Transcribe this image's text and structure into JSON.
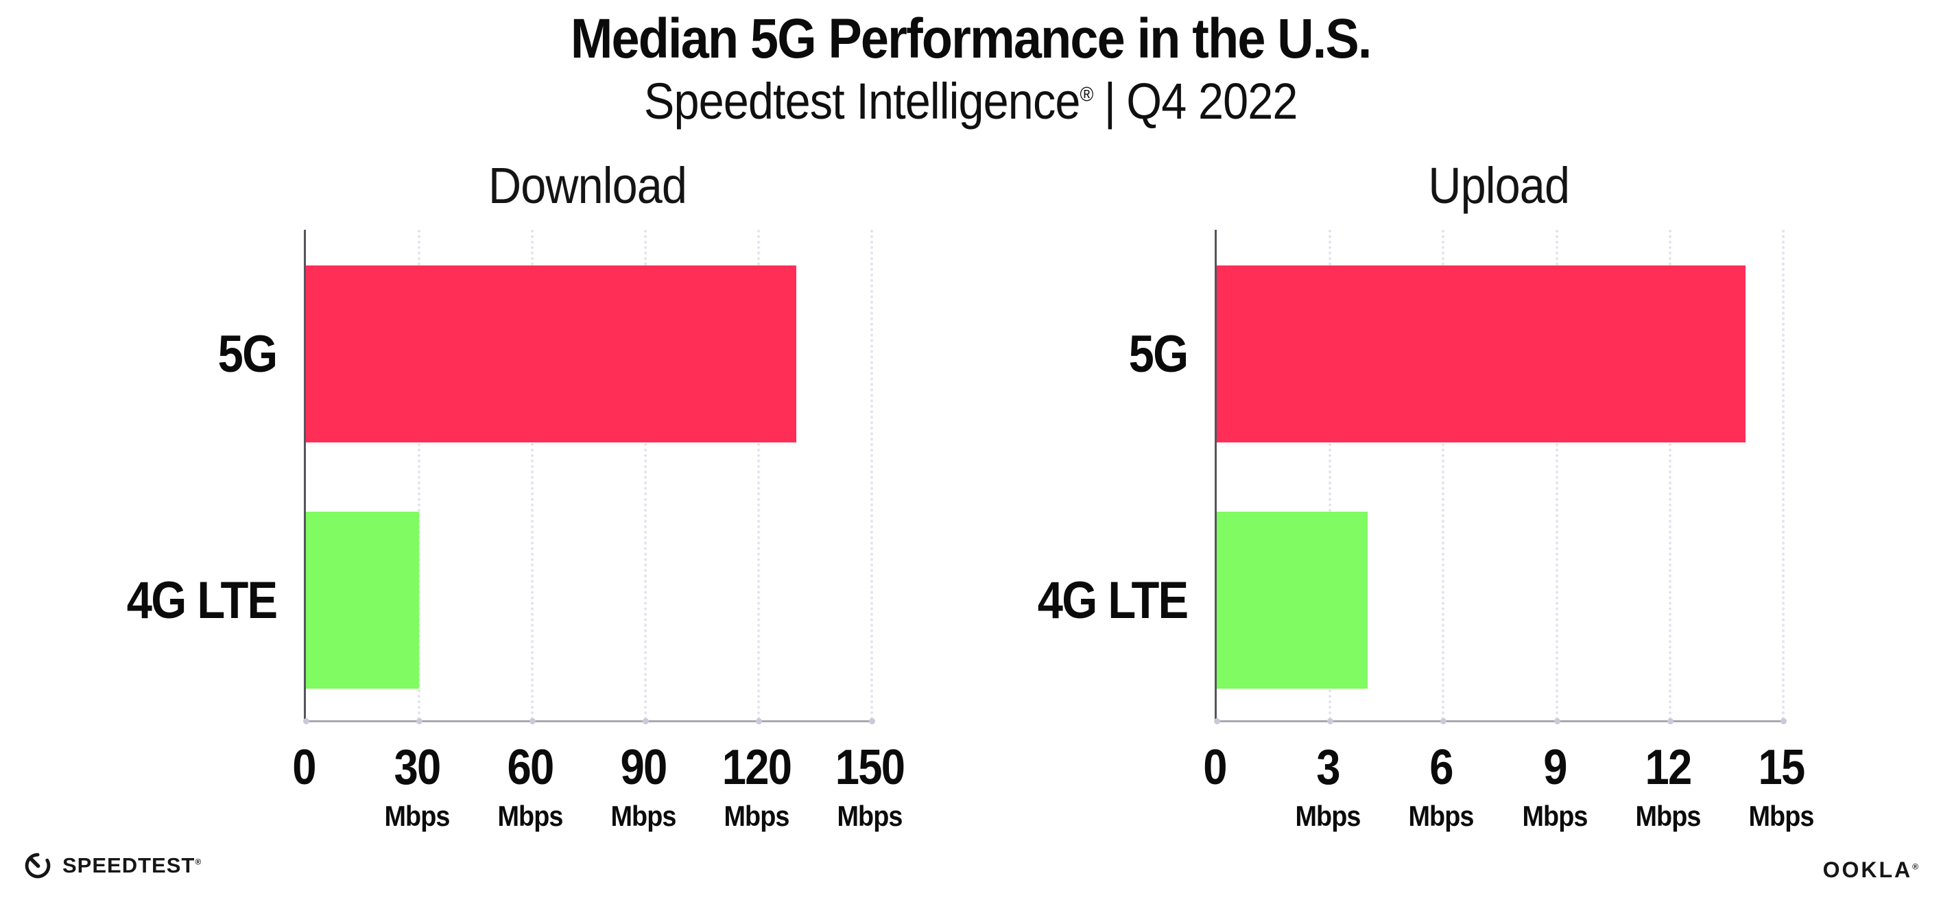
{
  "header": {
    "title": "Median 5G Performance in the U.S.",
    "subtitle_brand": "Speedtest Intelligence",
    "subtitle_reg": "®",
    "subtitle_separator": "|",
    "subtitle_period": "Q4 2022"
  },
  "chart_data": [
    {
      "type": "bar",
      "orientation": "horizontal",
      "title": "Download",
      "categories": [
        "5G",
        "4G LTE"
      ],
      "values": [
        130,
        30
      ],
      "unit": "Mbps",
      "xlim": [
        0,
        150
      ],
      "xticks": [
        0,
        30,
        60,
        90,
        120,
        150
      ],
      "bar_colors": [
        "#ff2e57",
        "#80fb61"
      ],
      "grid": "dotted-vertical",
      "legend": "none"
    },
    {
      "type": "bar",
      "orientation": "horizontal",
      "title": "Upload",
      "categories": [
        "5G",
        "4G LTE"
      ],
      "values": [
        14,
        4
      ],
      "unit": "Mbps",
      "xlim": [
        0,
        15
      ],
      "xticks": [
        0,
        3,
        6,
        9,
        12,
        15
      ],
      "bar_colors": [
        "#ff2e57",
        "#80fb61"
      ],
      "grid": "dotted-vertical",
      "legend": "none"
    }
  ],
  "footer": {
    "speedtest_label": "SPEEDTEST",
    "speedtest_reg": "®",
    "ookla_label": "OOKLA",
    "ookla_reg": "®"
  },
  "colors": {
    "bar_5g": "#ff2e57",
    "bar_4g_lte": "#80fb61",
    "grid": "#e2e3ee",
    "y_axis": "#55555e",
    "x_axis": "#a8a8b0",
    "text": "#0b0b0b"
  }
}
